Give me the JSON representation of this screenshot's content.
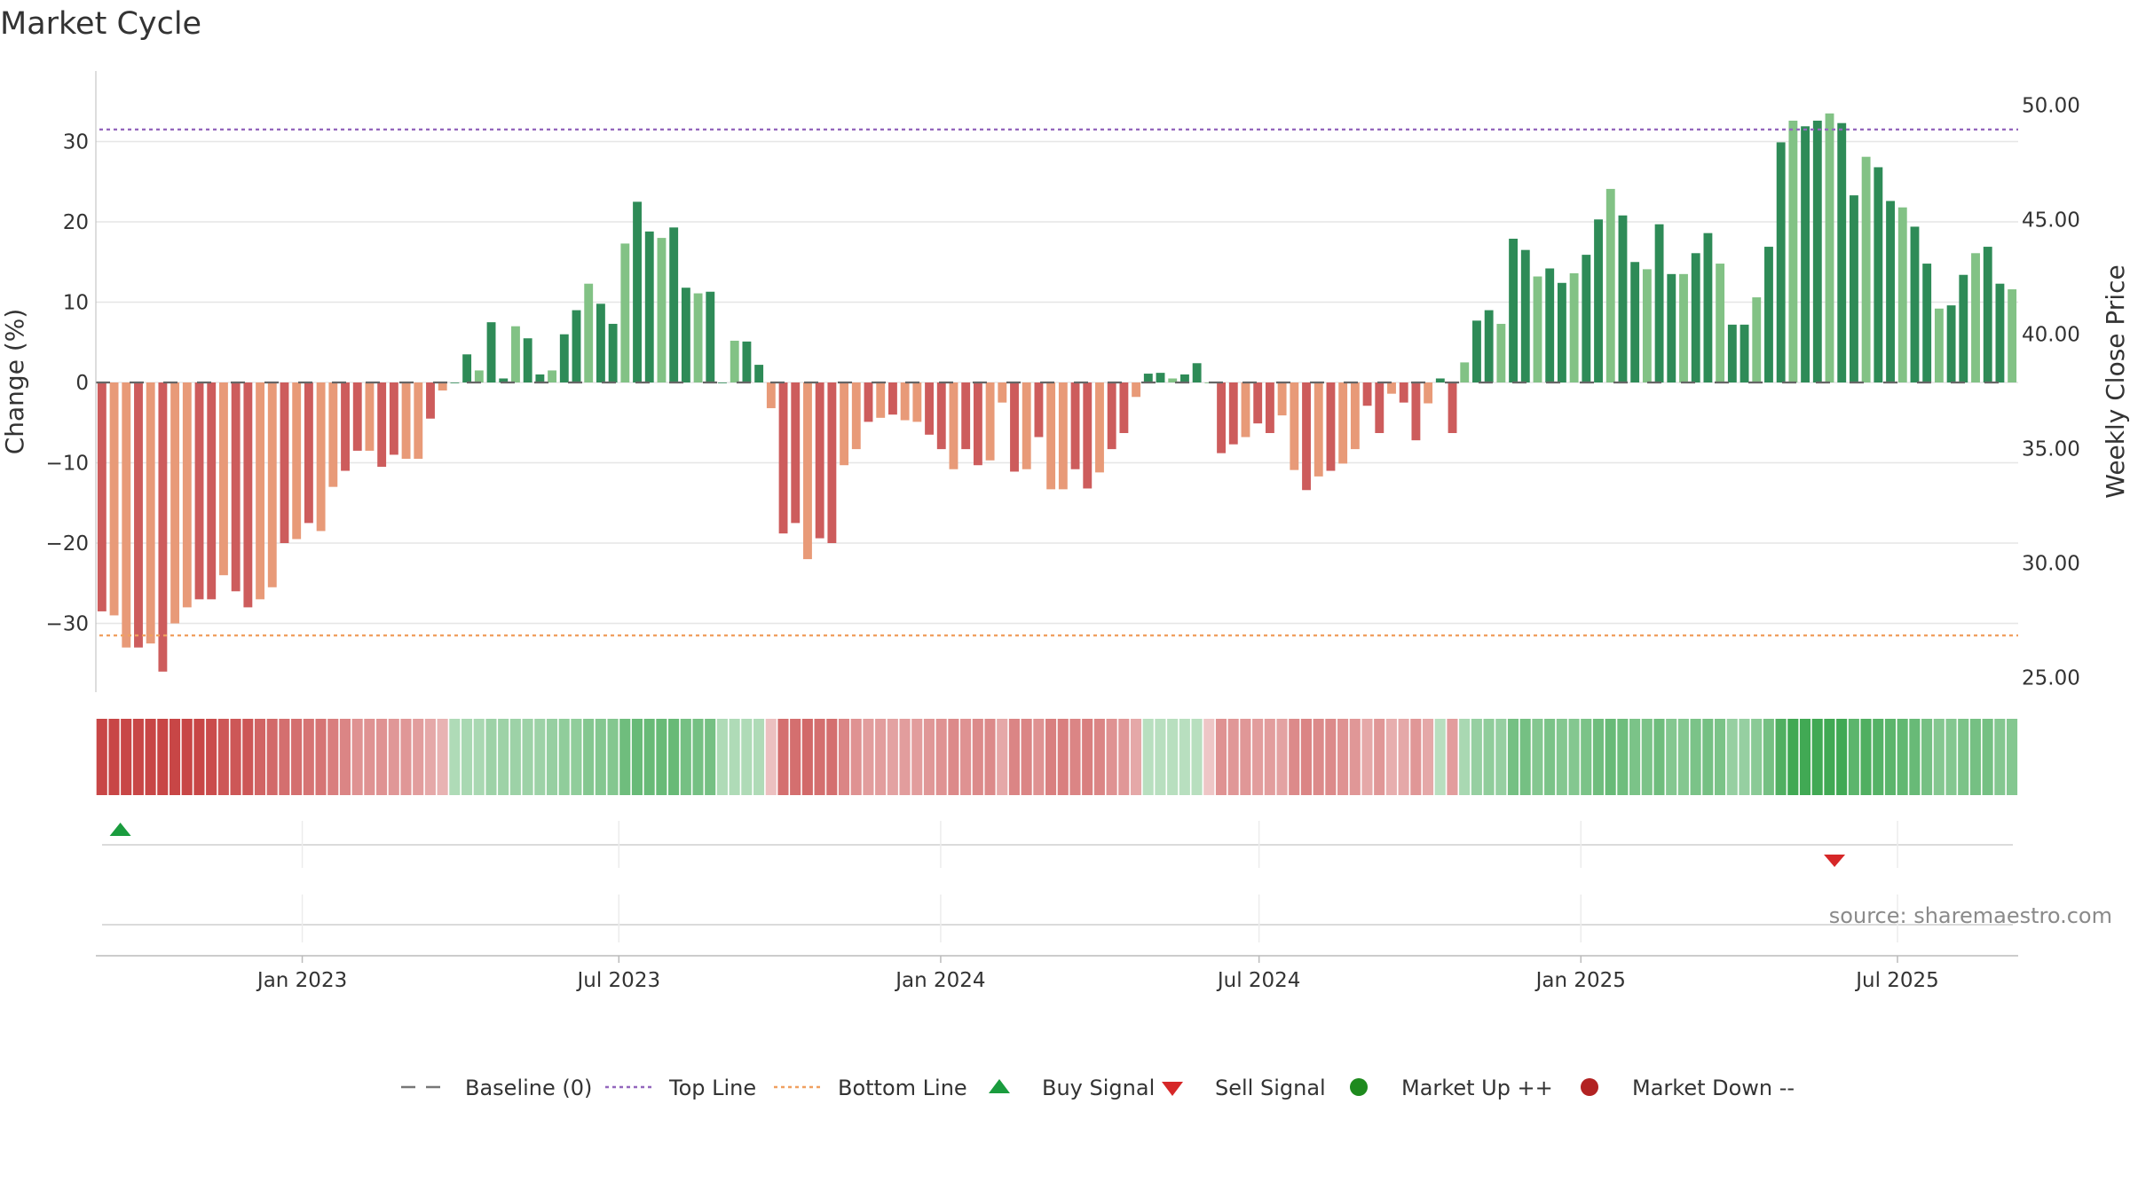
{
  "chart_data": {
    "type": "bar",
    "title": "Market Cycle",
    "ylabel_left": "Change (%)",
    "ylabel_right": "Weekly Close Price",
    "source": "source: sharemaestro.com",
    "ylim_left": [
      -39,
      39
    ],
    "ylim_right": [
      22.5,
      51.5
    ],
    "yticks_left": [
      30,
      20,
      10,
      0,
      -10,
      -20,
      -30
    ],
    "ytick_labels_left": [
      "30",
      "20",
      "10",
      "0",
      "−10",
      "−20",
      "−30"
    ],
    "yticks_right": [
      50,
      45,
      40,
      35,
      30,
      25
    ],
    "ytick_labels_right": [
      "50.00",
      "45.00",
      "40.00",
      "35.00",
      "30.00",
      "25.00"
    ],
    "top_line": 31.5,
    "bottom_line": -31.5,
    "x_start": "2022-09-05",
    "x_end": "2025-09-08",
    "xticks": [
      {
        "label": "Jan 2023",
        "date": "2023-01-01"
      },
      {
        "label": "Jul 2023",
        "date": "2023-07-01"
      },
      {
        "label": "Jan 2024",
        "date": "2024-01-01"
      },
      {
        "label": "Jul 2024",
        "date": "2024-07-01"
      },
      {
        "label": "Jan 2025",
        "date": "2025-01-01"
      },
      {
        "label": "Jul 2025",
        "date": "2025-07-01"
      }
    ],
    "series": [
      {
        "name": "Change",
        "values": [
          -28.5,
          -29,
          -33,
          -33,
          -32.5,
          -36,
          -30,
          -28,
          -27,
          -27,
          -24,
          -26,
          -28,
          -27,
          -25.5,
          -20,
          -19.5,
          -17.5,
          -18.5,
          -13,
          -11,
          -8.5,
          -8.5,
          -10.5,
          -9,
          -9.5,
          -9.5,
          -4.5,
          -1,
          0,
          3.5,
          1.5,
          7.5,
          0.5,
          7,
          5.5,
          1,
          1.5,
          6,
          9,
          12.3,
          9.8,
          7.3,
          17.3,
          22.5,
          18.8,
          18,
          19.3,
          11.8,
          11.1,
          11.3,
          0,
          5.2,
          5.1,
          2.2,
          -3.2,
          -18.8,
          -17.5,
          -22,
          -19.4,
          -20,
          -10.3,
          -8.3,
          -4.9,
          -4.4,
          -4,
          -4.7,
          -4.9,
          -6.5,
          -8.3,
          -10.8,
          -8.3,
          -10.3,
          -9.7,
          -2.5,
          -11.1,
          -10.8,
          -6.8,
          -13.3,
          -13.3,
          -10.8,
          -13.2,
          -11.2,
          -8.3,
          -6.3,
          -1.8,
          1.1,
          1.2,
          0.5,
          1,
          2.4,
          0,
          -8.8,
          -7.7,
          -6.8,
          -5.1,
          -6.3,
          -4.1,
          -10.9,
          -13.4,
          -11.7,
          -11,
          -10.1,
          -8.3,
          -2.9,
          -6.3,
          -1.4,
          -2.5,
          -7.2,
          -2.6,
          0.5,
          -6.3,
          2.5,
          7.7,
          9,
          7.3,
          17.9,
          16.5,
          13.2,
          14.2,
          12.4,
          13.6,
          15.9,
          20.3,
          24.1,
          20.8,
          15,
          14.1,
          19.7,
          13.5,
          13.5,
          16.1,
          18.6,
          14.8,
          7.2,
          7.2,
          10.6,
          16.9,
          29.9,
          32.6,
          31.9,
          32.6,
          33.5,
          32.3,
          23.3,
          28.1,
          26.8,
          22.6,
          21.8,
          19.4,
          14.8,
          9.2,
          9.6,
          13.4,
          16.1,
          16.9,
          12.3,
          11.6
        ]
      }
    ],
    "strip_levels": [
      -2.8,
      -2.8,
      -2.8,
      -2.8,
      -2.8,
      -3,
      -2.7,
      -2.5,
      -2.5,
      -2.4,
      -2.2,
      -2.2,
      -2.2,
      -2,
      -1.9,
      -1.8,
      -1.8,
      -1.7,
      -1.7,
      -1.5,
      -1.4,
      -1.2,
      -1.2,
      -1.2,
      -1.1,
      -1.1,
      -1,
      -0.8,
      -0.6,
      0.5,
      0.6,
      0.6,
      0.8,
      0.8,
      0.8,
      0.8,
      0.8,
      0.9,
      1,
      1,
      1.2,
      1.2,
      1.2,
      1.5,
      1.6,
      1.6,
      1.6,
      1.6,
      1.4,
      1.4,
      1.4,
      0.5,
      0.5,
      0.5,
      0.5,
      -0.4,
      -1.8,
      -1.8,
      -1.9,
      -1.8,
      -1.8,
      -1.4,
      -1.2,
      -1,
      -1,
      -0.9,
      -1,
      -1,
      -1.1,
      -1.2,
      -1.3,
      -1.2,
      -1.3,
      -1.3,
      -0.8,
      -1.4,
      -1.4,
      -1.2,
      -1.5,
      -1.5,
      -1.4,
      -1.5,
      -1.4,
      -1.2,
      -1.1,
      -0.8,
      0.4,
      0.4,
      0.4,
      0.4,
      0.4,
      -0.3,
      -1.2,
      -1.1,
      -1.1,
      -1,
      -1,
      -0.9,
      -1.3,
      -1.4,
      -1.3,
      -1.3,
      -1.2,
      -1.1,
      -0.8,
      -1.1,
      -0.7,
      -0.8,
      -1.1,
      -0.8,
      0.4,
      -1,
      0.6,
      0.9,
      1,
      0.9,
      1.4,
      1.4,
      1.2,
      1.3,
      1.2,
      1.2,
      1.3,
      1.5,
      1.6,
      1.5,
      1.3,
      1.3,
      1.5,
      1.2,
      1.2,
      1.3,
      1.4,
      1.3,
      0.9,
      0.9,
      1.1,
      1.4,
      2,
      2.2,
      2.2,
      2.2,
      2.2,
      2.2,
      1.8,
      2,
      1.9,
      1.8,
      1.7,
      1.6,
      1.4,
      1.2,
      1.2,
      1.3,
      1.4,
      1.4,
      1.2,
      1.2
    ],
    "signals": [
      {
        "type": "buy",
        "date": "2022-09-19"
      },
      {
        "type": "sell",
        "date": "2025-05-26"
      }
    ],
    "legend": [
      {
        "label": "Baseline (0)",
        "kind": "dash",
        "color": "#777777"
      },
      {
        "label": "Top Line",
        "kind": "dot",
        "color": "#9467bd"
      },
      {
        "label": "Bottom Line",
        "kind": "dot",
        "color": "#f0a060"
      },
      {
        "label": "Buy Signal",
        "kind": "triangle-up",
        "color": "#1a9c3e"
      },
      {
        "label": "Sell Signal",
        "kind": "triangle-down",
        "color": "#d62728"
      },
      {
        "label": "Market Up ++",
        "kind": "circle",
        "color": "#1e8a1e"
      },
      {
        "label": "Market Down --",
        "kind": "circle",
        "color": "#b22222"
      }
    ],
    "colors": {
      "up_strong": "#2e8b57",
      "up_weak": "#82c285",
      "down_strong": "#cd5c5c",
      "down_weak": "#e89a78",
      "top_line": "#9467bd",
      "bottom_line": "#f0a060",
      "buy": "#1a9c3e",
      "sell": "#d62728"
    }
  }
}
